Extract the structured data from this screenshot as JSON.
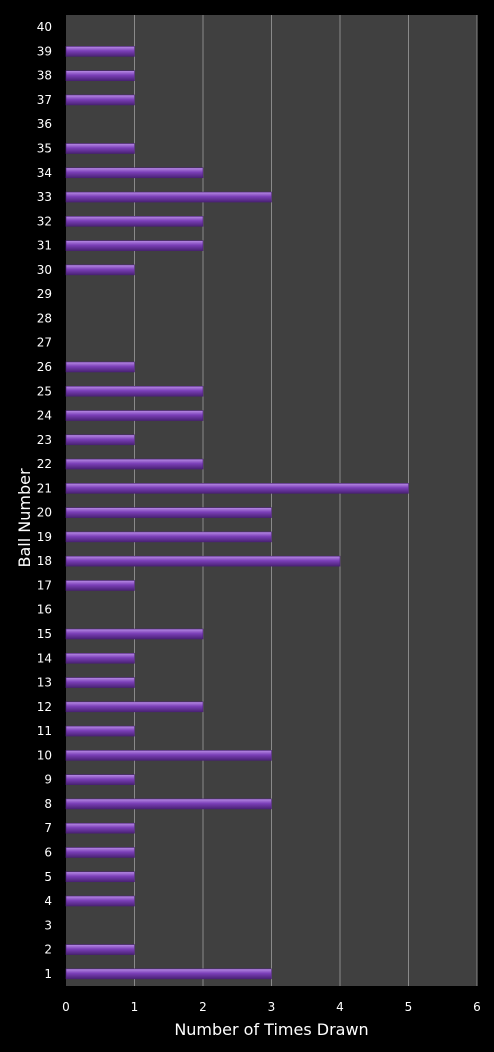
{
  "chart_data": {
    "type": "bar",
    "orientation": "horizontal",
    "title": "",
    "xlabel": "Number of Times Drawn",
    "ylabel": "Ball Number",
    "xlim": [
      0,
      6
    ],
    "x_ticks": [
      "0",
      "1",
      "2",
      "3",
      "4",
      "5",
      "6"
    ],
    "categories": [
      "1",
      "2",
      "3",
      "4",
      "5",
      "6",
      "7",
      "8",
      "9",
      "10",
      "11",
      "12",
      "13",
      "14",
      "15",
      "16",
      "17",
      "18",
      "19",
      "20",
      "21",
      "22",
      "23",
      "24",
      "25",
      "26",
      "27",
      "28",
      "29",
      "30",
      "31",
      "32",
      "33",
      "34",
      "35",
      "36",
      "37",
      "38",
      "39",
      "40"
    ],
    "values": [
      3,
      1,
      0,
      1,
      1,
      1,
      1,
      3,
      1,
      3,
      1,
      2,
      1,
      1,
      2,
      0,
      1,
      4,
      3,
      3,
      5,
      2,
      1,
      2,
      2,
      1,
      0,
      0,
      0,
      1,
      2,
      2,
      3,
      2,
      1,
      0,
      1,
      1,
      1,
      0
    ],
    "grid": "vertical",
    "legend": "none",
    "colors": {
      "background": "#000000",
      "plot_area": "#404040",
      "gridline": "#8a8a8a",
      "bar": "#7b3fb8",
      "bar_highlight": "#b98ee6",
      "bar_shadow": "#4a2275",
      "text": "#ffffff"
    }
  }
}
